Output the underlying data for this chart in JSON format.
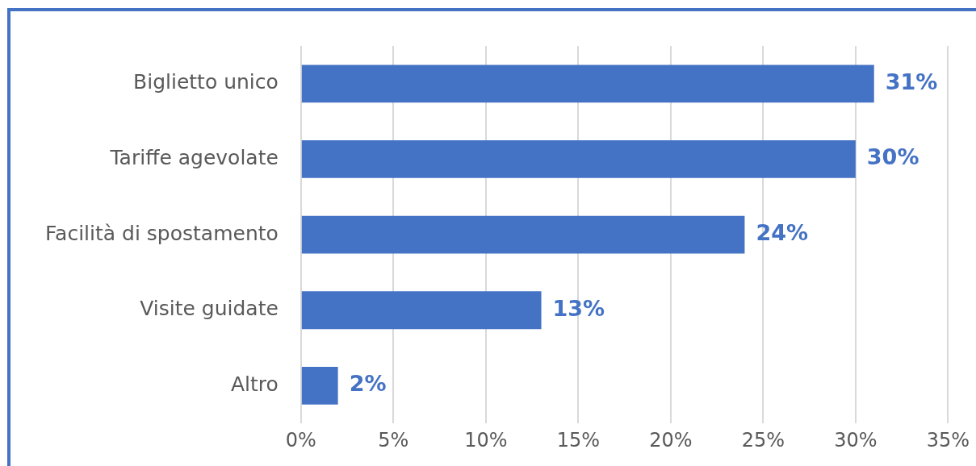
{
  "chart_data": {
    "type": "bar",
    "orientation": "horizontal",
    "categories": [
      "Biglietto unico",
      "Tariffe agevolate",
      "Facilità di spostamento",
      "Visite guidate",
      "Altro"
    ],
    "values": [
      31,
      30,
      24,
      13,
      2
    ],
    "value_labels": [
      "31%",
      "30%",
      "24%",
      "13%",
      "2%"
    ],
    "color": "#4472c4",
    "xlim": [
      0,
      35
    ],
    "xticks": [
      {
        "value": 0,
        "label": "0%"
      },
      {
        "value": 5,
        "label": "5%"
      },
      {
        "value": 10,
        "label": "10%"
      },
      {
        "value": 15,
        "label": "15%"
      },
      {
        "value": 20,
        "label": "20%"
      },
      {
        "value": 25,
        "label": "25%"
      },
      {
        "value": 30,
        "label": "30%"
      },
      {
        "value": 35,
        "label": "35%"
      }
    ],
    "grid": "x",
    "legend": false
  }
}
